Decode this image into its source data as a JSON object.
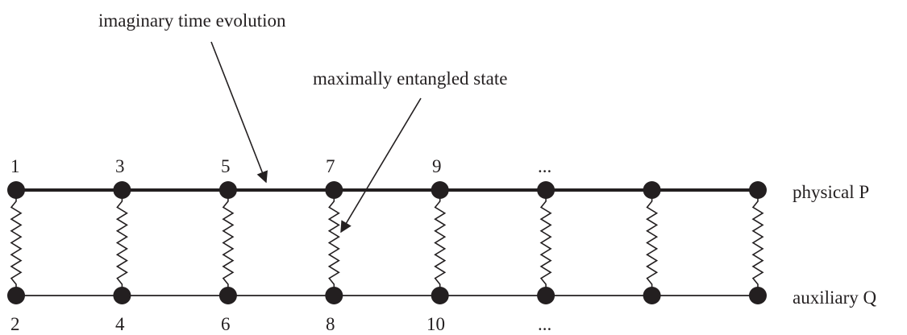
{
  "annotations": {
    "imaginary_time": "imaginary time evolution",
    "entangled_state": "maximally entangled state"
  },
  "rows": {
    "physical": "physical P",
    "auxiliary": "auxiliary Q"
  },
  "top_labels": [
    "1",
    "3",
    "5",
    "7",
    "9",
    "..."
  ],
  "bottom_labels": [
    "2",
    "4",
    "6",
    "8",
    "10",
    "..."
  ],
  "site_count": 8,
  "colors": {
    "ink": "#231f20",
    "background": "#ffffff"
  }
}
